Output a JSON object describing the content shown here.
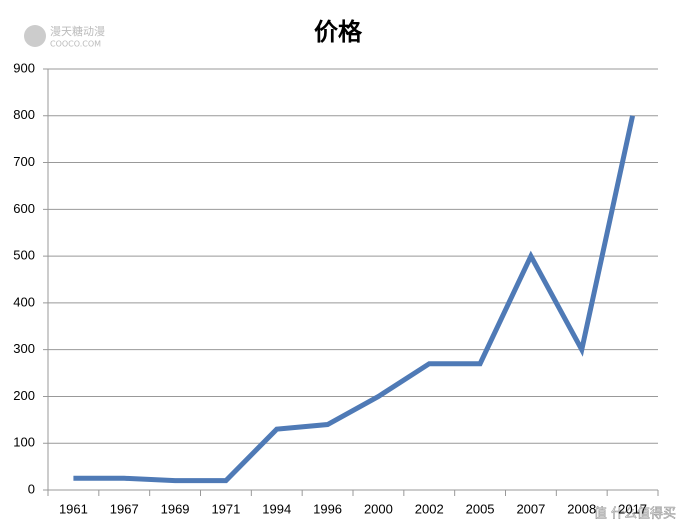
{
  "chart_data": {
    "type": "line",
    "title": "价格",
    "categories": [
      "1961",
      "1967",
      "1969",
      "1971",
      "1994",
      "1996",
      "2000",
      "2002",
      "2005",
      "2007",
      "2008",
      "2017"
    ],
    "values": [
      25,
      25,
      20,
      20,
      130,
      140,
      200,
      270,
      270,
      500,
      300,
      800
    ],
    "color": "#4f7ab6",
    "ylim": [
      0,
      900
    ],
    "yticks": [
      0,
      100,
      200,
      300,
      400,
      500,
      600,
      700,
      800,
      900
    ],
    "grid": true
  },
  "watermarks": {
    "top_left": "漫天糖动漫",
    "top_left_sub": "COOCO.COM",
    "bottom_right": "值 什么值得买"
  }
}
